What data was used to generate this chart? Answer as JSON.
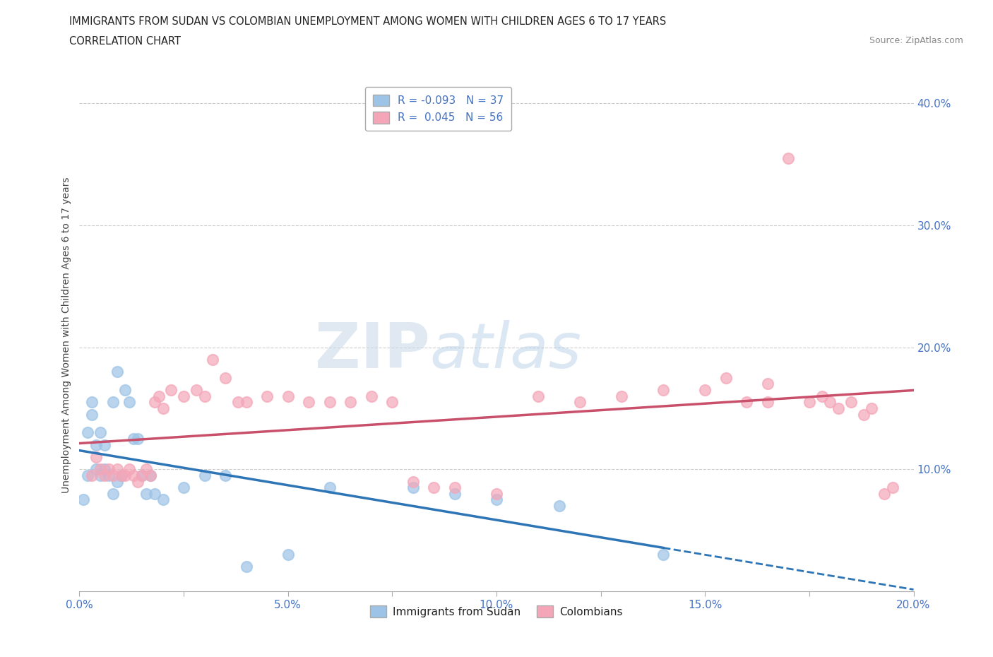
{
  "title_line1": "IMMIGRANTS FROM SUDAN VS COLOMBIAN UNEMPLOYMENT AMONG WOMEN WITH CHILDREN AGES 6 TO 17 YEARS",
  "title_line2": "CORRELATION CHART",
  "source": "Source: ZipAtlas.com",
  "ylabel": "Unemployment Among Women with Children Ages 6 to 17 years",
  "xlim": [
    0.0,
    0.2
  ],
  "ylim": [
    0.0,
    0.42
  ],
  "xtick_positions": [
    0.0,
    0.025,
    0.05,
    0.075,
    0.1,
    0.125,
    0.15,
    0.175,
    0.2
  ],
  "xtick_labels": [
    "0.0%",
    "",
    "5.0%",
    "",
    "10.0%",
    "",
    "15.0%",
    "",
    "20.0%"
  ],
  "ytick_positions": [
    0.1,
    0.2,
    0.3,
    0.4
  ],
  "ytick_labels": [
    "10.0%",
    "20.0%",
    "30.0%",
    "40.0%"
  ],
  "grid_color": "#cccccc",
  "background_color": "#ffffff",
  "sudan_color": "#9dc3e6",
  "colombian_color": "#f4a6b8",
  "sudan_line_color": "#2e75b6",
  "colombian_line_color": "#c9506a",
  "legend_r_sudan": "-0.093",
  "legend_n_sudan": "37",
  "legend_r_colombian": "0.045",
  "legend_n_colombian": "56",
  "sudan_x": [
    0.001,
    0.002,
    0.002,
    0.003,
    0.003,
    0.004,
    0.004,
    0.005,
    0.005,
    0.006,
    0.006,
    0.007,
    0.008,
    0.008,
    0.009,
    0.009,
    0.01,
    0.011,
    0.012,
    0.013,
    0.014,
    0.015,
    0.016,
    0.017,
    0.018,
    0.02,
    0.025,
    0.03,
    0.035,
    0.04,
    0.05,
    0.06,
    0.08,
    0.09,
    0.1,
    0.115,
    0.14
  ],
  "sudan_y": [
    0.075,
    0.095,
    0.13,
    0.155,
    0.145,
    0.12,
    0.1,
    0.13,
    0.095,
    0.12,
    0.1,
    0.095,
    0.08,
    0.155,
    0.18,
    0.09,
    0.095,
    0.165,
    0.155,
    0.125,
    0.125,
    0.095,
    0.08,
    0.095,
    0.08,
    0.075,
    0.085,
    0.095,
    0.095,
    0.02,
    0.03,
    0.085,
    0.085,
    0.08,
    0.075,
    0.07,
    0.03
  ],
  "colombian_x": [
    0.003,
    0.004,
    0.005,
    0.006,
    0.007,
    0.008,
    0.009,
    0.01,
    0.011,
    0.012,
    0.013,
    0.014,
    0.015,
    0.016,
    0.017,
    0.018,
    0.019,
    0.02,
    0.022,
    0.025,
    0.028,
    0.03,
    0.032,
    0.035,
    0.038,
    0.04,
    0.045,
    0.05,
    0.055,
    0.06,
    0.065,
    0.07,
    0.075,
    0.08,
    0.085,
    0.09,
    0.1,
    0.11,
    0.12,
    0.13,
    0.14,
    0.15,
    0.155,
    0.16,
    0.165,
    0.165,
    0.17,
    0.175,
    0.178,
    0.18,
    0.182,
    0.185,
    0.188,
    0.19,
    0.193,
    0.195
  ],
  "colombian_y": [
    0.095,
    0.11,
    0.1,
    0.095,
    0.1,
    0.095,
    0.1,
    0.095,
    0.095,
    0.1,
    0.095,
    0.09,
    0.095,
    0.1,
    0.095,
    0.155,
    0.16,
    0.15,
    0.165,
    0.16,
    0.165,
    0.16,
    0.19,
    0.175,
    0.155,
    0.155,
    0.16,
    0.16,
    0.155,
    0.155,
    0.155,
    0.16,
    0.155,
    0.09,
    0.085,
    0.085,
    0.08,
    0.16,
    0.155,
    0.16,
    0.165,
    0.165,
    0.175,
    0.155,
    0.155,
    0.17,
    0.355,
    0.155,
    0.16,
    0.155,
    0.15,
    0.155,
    0.145,
    0.15,
    0.08,
    0.085
  ]
}
